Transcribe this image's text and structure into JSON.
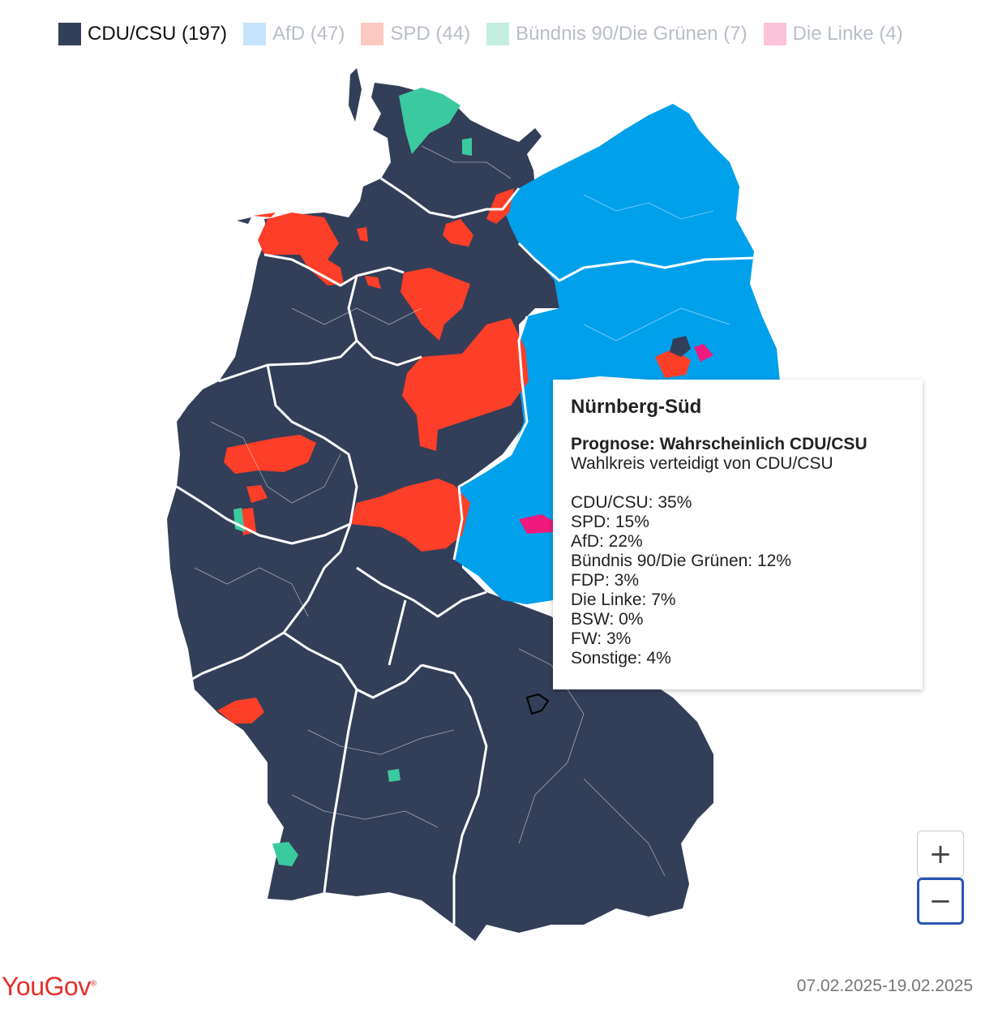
{
  "legend": [
    {
      "label": "CDU/CSU (197)",
      "color": "#333e58",
      "state": "active"
    },
    {
      "label": "AfD (47)",
      "color": "#c6e4fb",
      "state": "dim"
    },
    {
      "label": "SPD (44)",
      "color": "#fcc9c0",
      "state": "dim"
    },
    {
      "label": "Bündnis 90/Die Grünen (7)",
      "color": "#c5eee2",
      "state": "dim"
    },
    {
      "label": "Die Linke (4)",
      "color": "#fbc2d9",
      "state": "dim"
    }
  ],
  "colors": {
    "cdu": "#333e58",
    "afd": "#00a0eb",
    "spd": "#fd3e28",
    "gruene": "#3bcaa0",
    "linke": "#f0197d",
    "border": "#ffffff"
  },
  "tooltip": {
    "title": "Nürnberg-Süd",
    "prognosis": "Prognose: Wahrscheinlich CDU/CSU",
    "defended": "Wahlkreis verteidigt von CDU/CSU",
    "results": [
      "CDU/CSU: 35%",
      "SPD: 15%",
      "AfD: 22%",
      "Bündnis 90/Die Grünen: 12%",
      "FDP: 3%",
      "Die Linke: 7%",
      "BSW: 0%",
      "FW: 3%",
      "Sonstige: 4%"
    ]
  },
  "zoom": {
    "in_label": "+",
    "out_label": "−"
  },
  "footer": {
    "logo": "YouGov",
    "logo_mark": "®",
    "date_range": "07.02.2025-19.02.2025"
  }
}
